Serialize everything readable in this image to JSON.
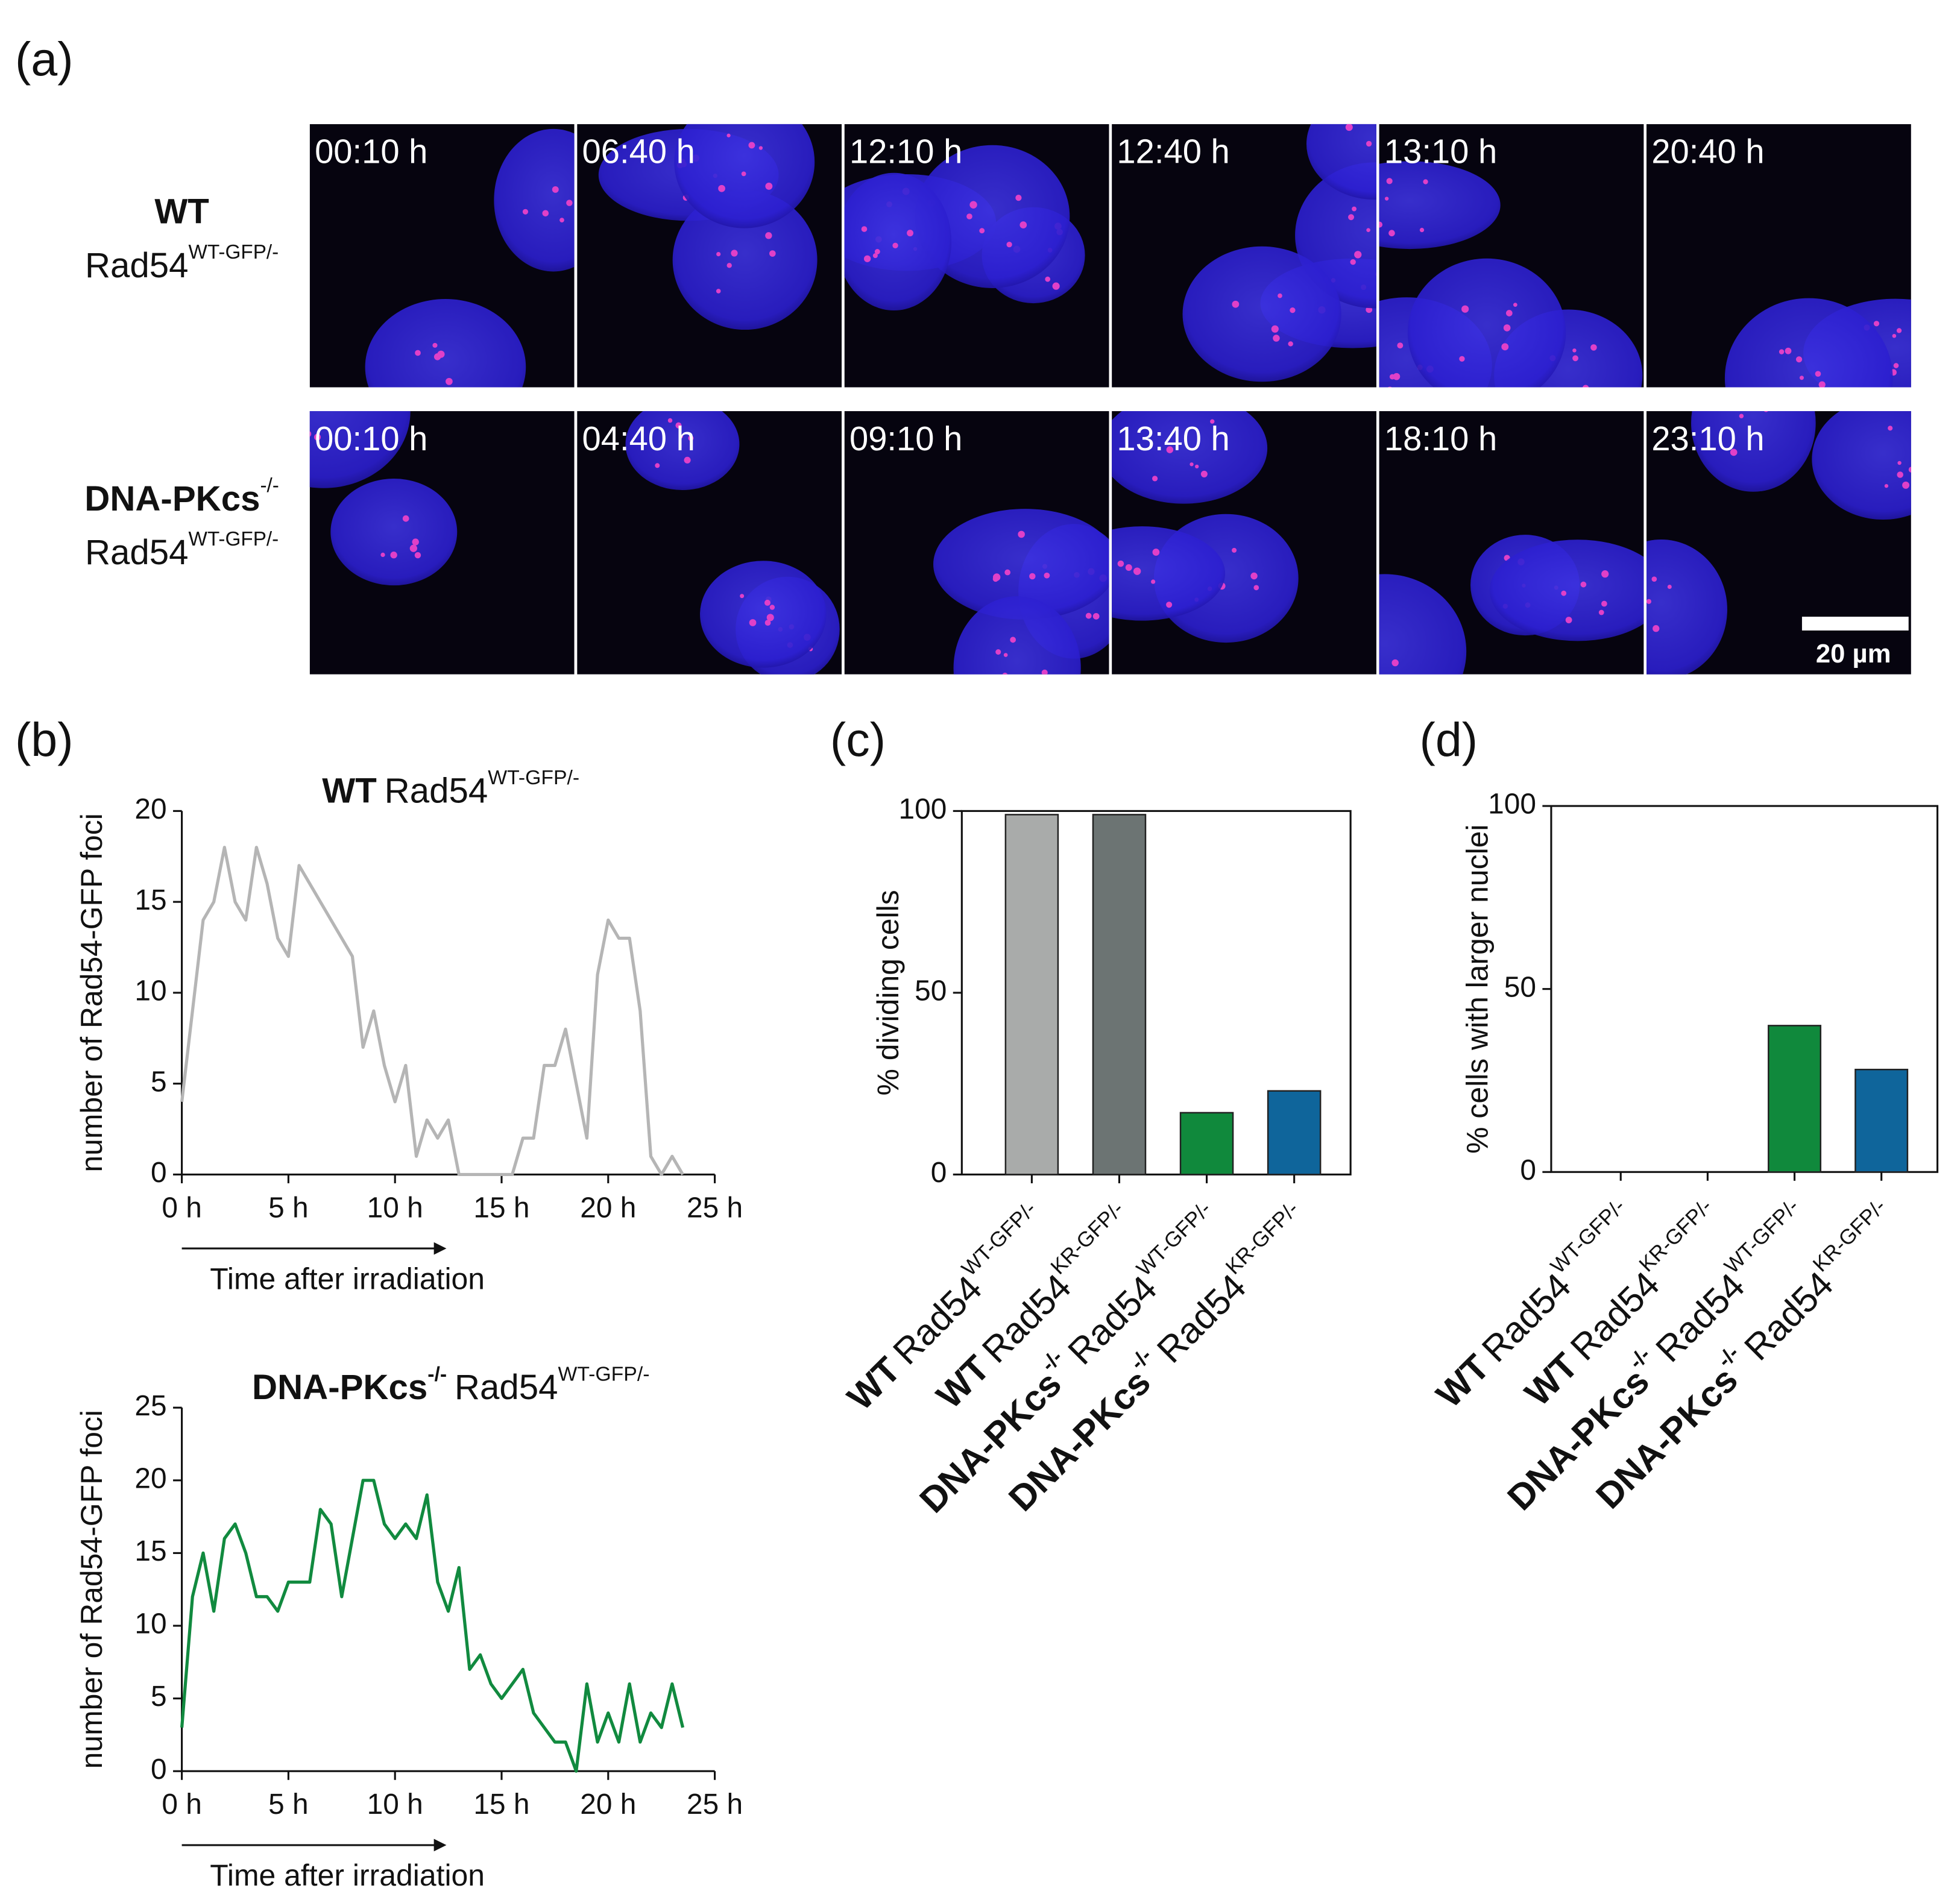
{
  "panel_labels": [
    "(a)",
    "(b)",
    "(c)",
    "(d)"
  ],
  "panel_a": {
    "rows": [
      {
        "label": {
          "bold": "WT",
          "text": "Rad54",
          "sup": "WT-GFP/-"
        },
        "times": [
          "00:10 h",
          "06:40 h",
          "12:10 h",
          "12:40 h",
          "13:10 h",
          "20:40 h"
        ]
      },
      {
        "label": {
          "bold": "DNA-PKcs",
          "bold_sup": "-/-",
          "text": "Rad54",
          "sup": "WT-GFP/-"
        },
        "times": [
          "00:10 h",
          "04:40 h",
          "09:10 h",
          "13:40 h",
          "18:10 h",
          "23:10 h"
        ]
      }
    ],
    "scale_bar": "20 µm"
  },
  "chart_data": [
    {
      "type": "line",
      "title": {
        "bold": "WT",
        "text": "Rad54",
        "sup": "WT-GFP/-"
      },
      "x_label": "Time after irradiation",
      "y_label": "number of Rad54-GFP foci",
      "color": "#b5b5b5",
      "x": [
        0,
        1,
        1.5,
        2,
        2.5,
        3,
        3.5,
        4,
        4.5,
        5,
        5.5,
        6,
        6.5,
        7,
        7.5,
        8,
        8.5,
        9,
        9.5,
        10,
        10.5,
        11,
        11.5,
        12,
        12.5,
        13,
        13.5,
        14,
        14.5,
        15,
        15.5,
        16,
        16.5,
        17,
        17.5,
        18,
        18.5,
        19,
        19.5,
        20,
        20.5,
        21,
        21.5,
        22,
        22.5,
        23,
        23.5
      ],
      "values": [
        4,
        14,
        15,
        18,
        15,
        14,
        18,
        16,
        13,
        12,
        17,
        16,
        15,
        14,
        13,
        12,
        7,
        9,
        6,
        4,
        6,
        1,
        3,
        2,
        3,
        0,
        0,
        0,
        0,
        0,
        0,
        2,
        2,
        6,
        6,
        8,
        5,
        2,
        11,
        14,
        13,
        13,
        9,
        1,
        0,
        1,
        0
      ],
      "xlim": [
        0,
        25
      ],
      "xticks": [
        {
          "value": 0,
          "label": "0 h"
        },
        {
          "value": 5,
          "label": "5 h"
        },
        {
          "value": 10,
          "label": "10 h"
        },
        {
          "value": 15,
          "label": "15 h"
        },
        {
          "value": 20,
          "label": "20 h"
        },
        {
          "value": 25,
          "label": "25 h"
        }
      ],
      "ylim": [
        0,
        20
      ],
      "yticks": [
        0,
        5,
        10,
        15,
        20
      ]
    },
    {
      "type": "line",
      "title": {
        "bold": "DNA-PKcs",
        "bold_sup": "-/-",
        "text": "Rad54",
        "sup": "WT-GFP/-"
      },
      "x_label": "Time after irradiation",
      "y_label": "number of Rad54-GFP foci",
      "color": "#118a3f",
      "x": [
        0,
        0.5,
        1,
        1.5,
        2,
        2.5,
        3,
        3.5,
        4,
        4.5,
        5,
        5.5,
        6,
        6.5,
        7,
        7.5,
        8,
        8.5,
        9,
        9.5,
        10,
        10.5,
        11,
        11.5,
        12,
        12.5,
        13,
        13.5,
        14,
        14.5,
        15,
        15.5,
        16,
        16.5,
        17,
        17.5,
        18,
        18.5,
        19,
        19.5,
        20,
        20.5,
        21,
        21.5,
        22,
        22.5,
        23,
        23.5
      ],
      "values": [
        3,
        12,
        15,
        11,
        16,
        17,
        15,
        12,
        12,
        11,
        13,
        13,
        13,
        18,
        17,
        12,
        16,
        20,
        20,
        17,
        16,
        17,
        16,
        19,
        13,
        11,
        14,
        7,
        8,
        6,
        5,
        6,
        7,
        4,
        3,
        2,
        2,
        0,
        6,
        2,
        4,
        2,
        6,
        2,
        4,
        3,
        6,
        3
      ],
      "xlim": [
        0,
        25
      ],
      "xticks": [
        {
          "value": 0,
          "label": "0 h"
        },
        {
          "value": 5,
          "label": "5 h"
        },
        {
          "value": 10,
          "label": "10 h"
        },
        {
          "value": 15,
          "label": "15 h"
        },
        {
          "value": 20,
          "label": "20 h"
        },
        {
          "value": 25,
          "label": "25 h"
        }
      ],
      "ylim": [
        0,
        25
      ],
      "yticks": [
        0,
        5,
        10,
        15,
        20,
        25
      ]
    },
    {
      "type": "bar",
      "y_label": "% dividing cells",
      "categories": [
        {
          "bold": "WT",
          "text": "Rad54",
          "sup": "WT-GFP/-"
        },
        {
          "bold": "WT",
          "text": "Rad54",
          "sup": "KR-GFP/-"
        },
        {
          "bold": "DNA-PKcs",
          "bold_sup": "-/-",
          "text": "Rad54",
          "sup": "WT-GFP/-"
        },
        {
          "bold": "DNA-PKcs",
          "bold_sup": "-/-",
          "text": "Rad54",
          "sup": "KR-GFP/-"
        }
      ],
      "values": [
        99,
        99,
        17,
        23
      ],
      "colors": [
        "#a9abaa",
        "#6c7473",
        "#10893c",
        "#0f659b"
      ],
      "ylim": [
        0,
        100
      ],
      "yticks": [
        0,
        50,
        100
      ]
    },
    {
      "type": "bar",
      "y_label": "% cells with larger nuclei",
      "categories": [
        {
          "bold": "WT",
          "text": "Rad54",
          "sup": "WT-GFP/-"
        },
        {
          "bold": "WT",
          "text": "Rad54",
          "sup": "KR-GFP/-"
        },
        {
          "bold": "DNA-PKcs",
          "bold_sup": "-/-",
          "text": "Rad54",
          "sup": "WT-GFP/-"
        },
        {
          "bold": "DNA-PKcs",
          "bold_sup": "-/-",
          "text": "Rad54",
          "sup": "KR-GFP/-"
        }
      ],
      "values": [
        0,
        0,
        40,
        28
      ],
      "colors": [
        "#a9abaa",
        "#6c7473",
        "#10893c",
        "#0f659b"
      ],
      "ylim": [
        0,
        100
      ],
      "yticks": [
        0,
        50,
        100
      ]
    }
  ]
}
